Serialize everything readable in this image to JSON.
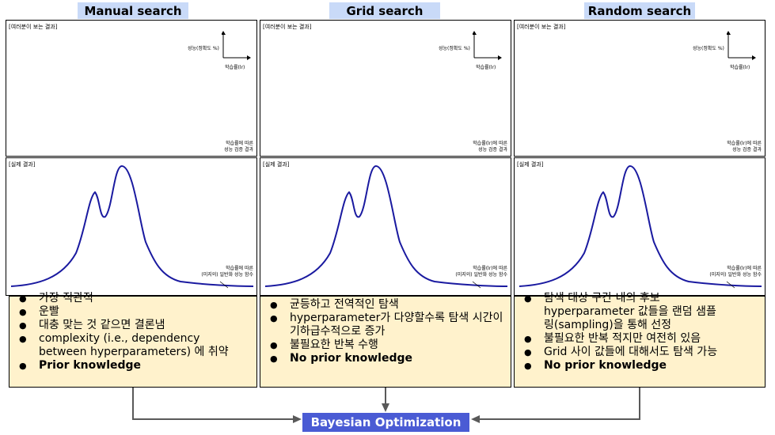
{
  "columns": [
    {
      "title": "Manual search",
      "top_panel": {
        "tag": "[여러분이 보는 결과]",
        "y_axis_label": "성능(정확도 %)",
        "x_axis_label": "학습률(lr)",
        "note_line1": "학습률에 따른",
        "note_line2": "성능 검증 결과"
      },
      "bottom_panel": {
        "tag": "[실제 결과]",
        "note_line1": "학습률에 따른",
        "note_line2": "(미지의) 일반화 성능 함수"
      },
      "bullets": [
        {
          "text": "가장 직관적",
          "bold": false
        },
        {
          "text": "운빨",
          "bold": false
        },
        {
          "text": "대충 맞는 것 같으면 결론냄",
          "bold": false
        },
        {
          "text": "complexity (i.e., dependency between hyperparameters) 에 취약",
          "bold": false
        },
        {
          "text": "Prior knowledge",
          "bold": true
        }
      ]
    },
    {
      "title": "Grid search",
      "top_panel": {
        "tag": "[여러분이 보는 결과]",
        "y_axis_label": "성능(정확도 %)",
        "x_axis_label": "학습률(lr)",
        "note_line1": "학습률(lr)에 따른",
        "note_line2": "성능 검증 결과"
      },
      "bottom_panel": {
        "tag": "[실제 결과]",
        "note_line1": "학습률(lr)에 따른",
        "note_line2": "(미지의) 일반화 성능 함수"
      },
      "bullets": [
        {
          "text": "균등하고 전역적인 탐색",
          "bold": false
        },
        {
          "text": "hyperparameter가 다양할수록 탐색 시간이 기하급수적으로 증가",
          "bold": false
        },
        {
          "text": "불필요한 반복 수행",
          "bold": false
        },
        {
          "text": "No prior knowledge",
          "bold": true
        }
      ]
    },
    {
      "title": "Random search",
      "top_panel": {
        "tag": "[여러분이 보는 결과]",
        "y_axis_label": "성능(정확도 %)",
        "x_axis_label": "학습률(lr)",
        "note_line1": "학습률(lr)에 따른",
        "note_line2": "성능 검증 결과"
      },
      "bottom_panel": {
        "tag": "[실제 결과]",
        "note_line1": "학습률(lr)에 따른",
        "note_line2": "(미지의) 일반화 성능 함수"
      },
      "bullets": [
        {
          "text": "탐색 대상 구간 내의 후보 hyperparameter 값들을 랜덤 샘플링(sampling)을 통해 선정",
          "bold": false
        },
        {
          "text": "불필요한 반복 적지만 여전히 있음",
          "bold": false
        },
        {
          "text": "Grid 사이 값들에 대해서도 탐색 가능",
          "bold": false
        },
        {
          "text": "No prior knowledge",
          "bold": true
        }
      ]
    }
  ],
  "target": "Bayesian Optimization",
  "colors": {
    "title_bg": "#c9daf8",
    "bullet_bg": "#fff2cc",
    "curve": "#1a1aa0",
    "target_bg": "#4a5bd4",
    "arrow": "#595959"
  }
}
